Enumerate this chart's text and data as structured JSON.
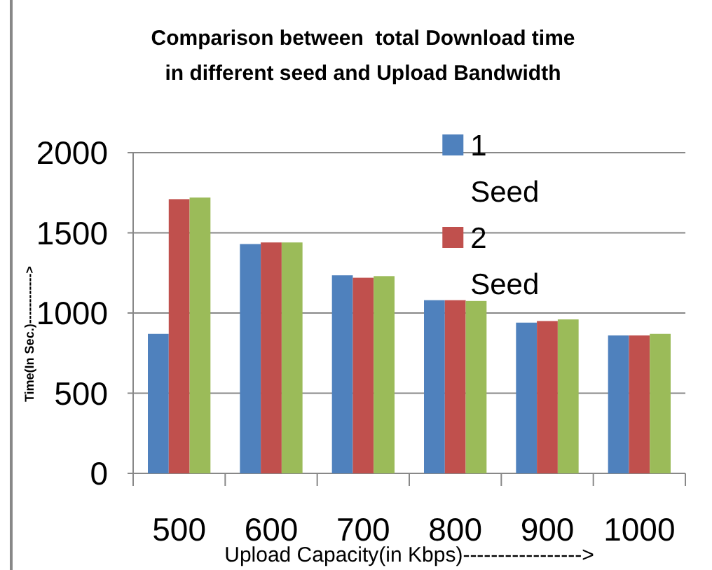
{
  "chart_data": {
    "type": "bar",
    "title": "Comparison between  total Download time\nin different seed and Upload Bandwidth",
    "xlabel": "Upload Capacity(in Kbps)----------------->",
    "ylabel": "Time(In Sec.)------------>",
    "categories": [
      "500",
      "600",
      "700",
      "800",
      "900",
      "1000"
    ],
    "series": [
      {
        "name": "1 Seed",
        "color": "#4f81bd",
        "values": [
          870,
          1430,
          1235,
          1080,
          940,
          860
        ]
      },
      {
        "name": "2 Seed",
        "color": "#c0504d",
        "values": [
          1710,
          1440,
          1220,
          1080,
          950,
          860
        ]
      },
      {
        "color": "#9bbb59",
        "values": [
          1720,
          1440,
          1230,
          1075,
          960,
          870
        ]
      }
    ],
    "ylim": [
      0,
      2000
    ],
    "yticks": [
      0,
      500,
      1000,
      1500,
      2000
    ],
    "grid": "y",
    "legend": "top right"
  }
}
